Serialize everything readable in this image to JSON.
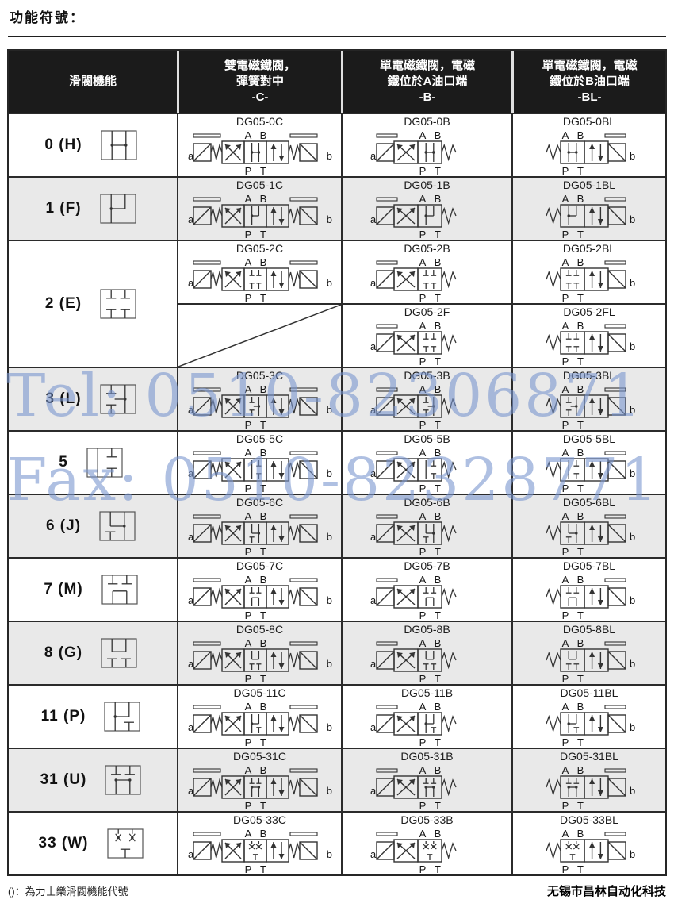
{
  "page": {
    "title": "功能符號：",
    "footnote": "()：為力士樂滑閥機能代號",
    "company": "无锡市昌林自动化科技"
  },
  "watermark": {
    "tel": "Tel: 0510-82306871",
    "fax": "Fax: 0510-82328771",
    "color": "#7a96ce"
  },
  "colors": {
    "header_bg": "#1b1b1b",
    "header_text": "#ffffff",
    "row_shaded": "#e9e9e9",
    "border": "#2b2b2b",
    "diagram_ink": "#333333"
  },
  "table": {
    "columns": [
      {
        "id": "function",
        "lines": [
          "滑閥機能"
        ],
        "code": ""
      },
      {
        "id": "c",
        "lines": [
          "雙電磁鐵閥，",
          "彈簧對中"
        ],
        "code": "-C-"
      },
      {
        "id": "b",
        "lines": [
          "單電磁鐵閥，電磁",
          "鐵位於A油口端"
        ],
        "code": "-B-"
      },
      {
        "id": "bl",
        "lines": [
          "單電磁鐵閥，電磁",
          "鐵位於B油口端"
        ],
        "code": "-BL-"
      }
    ],
    "port_labels": {
      "top_left": "A",
      "top_right": "B",
      "bottom_left": "P",
      "bottom_right": "T",
      "solenoid_a": "a",
      "solenoid_b": "b"
    },
    "rows": [
      {
        "function": "0 (H)",
        "spool": "0",
        "c": "DG05-0C",
        "b": "DG05-0B",
        "bl": "DG05-0BL",
        "shaded": false
      },
      {
        "function": "1 (F)",
        "spool": "1",
        "c": "DG05-1C",
        "b": "DG05-1B",
        "bl": "DG05-1BL",
        "shaded": true
      },
      {
        "function": "2 (E)",
        "spool": "2",
        "c": "DG05-2C",
        "b": "DG05-2B",
        "bl": "DG05-2BL",
        "second_row": {
          "c": "",
          "b": "DG05-2F",
          "bl": "DG05-2FL"
        },
        "shaded": false
      },
      {
        "function": "3 (L)",
        "spool": "3",
        "c": "DG05-3C",
        "b": "DG05-3B",
        "bl": "DG05-3BL",
        "shaded": true
      },
      {
        "function": "5",
        "spool": "5",
        "c": "DG05-5C",
        "b": "DG05-5B",
        "bl": "DG05-5BL",
        "shaded": false
      },
      {
        "function": "6 (J)",
        "spool": "6",
        "c": "DG05-6C",
        "b": "DG05-6B",
        "bl": "DG05-6BL",
        "shaded": true
      },
      {
        "function": "7 (M)",
        "spool": "7",
        "c": "DG05-7C",
        "b": "DG05-7B",
        "bl": "DG05-7BL",
        "shaded": false
      },
      {
        "function": "8 (G)",
        "spool": "8",
        "c": "DG05-8C",
        "b": "DG05-8B",
        "bl": "DG05-8BL",
        "shaded": true
      },
      {
        "function": "11 (P)",
        "spool": "11",
        "c": "DG05-11C",
        "b": "DG05-11B",
        "bl": "DG05-11BL",
        "shaded": false
      },
      {
        "function": "31 (U)",
        "spool": "31",
        "c": "DG05-31C",
        "b": "DG05-31B",
        "bl": "DG05-31BL",
        "shaded": true
      },
      {
        "function": "33 (W)",
        "spool": "33",
        "c": "DG05-33C",
        "b": "DG05-33B",
        "bl": "DG05-33BL",
        "shaded": false
      }
    ]
  }
}
